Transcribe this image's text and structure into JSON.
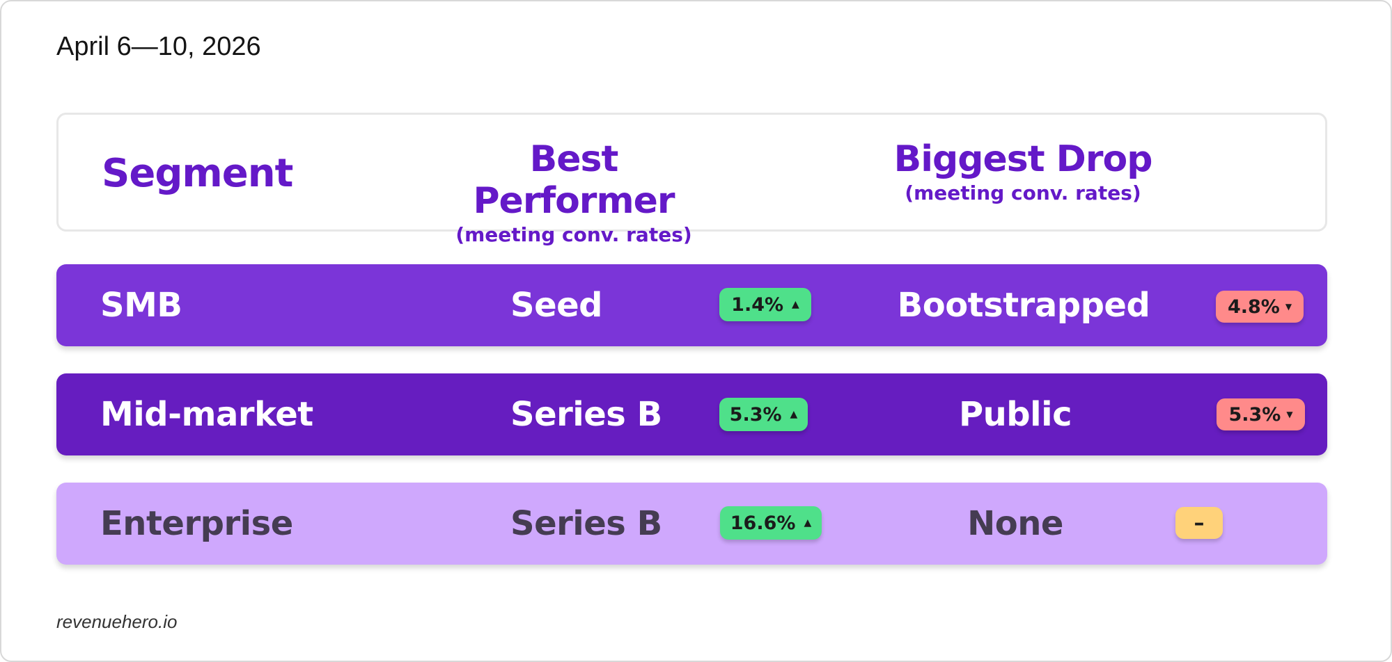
{
  "date_range": "April 6—10, 2026",
  "header": {
    "segment": "Segment",
    "best_title": "Best Performer",
    "best_sub": "(meeting conv. rates)",
    "drop_title": "Biggest Drop",
    "drop_sub": "(meeting conv. rates)"
  },
  "rows": [
    {
      "segment": "SMB",
      "best": "Seed",
      "best_change": "1.4%",
      "best_arrow": "▲",
      "drop": "Bootstrapped",
      "drop_change": "4.8%",
      "drop_arrow": "▼",
      "bg": "#7b35d8",
      "text_color": "#ffffff"
    },
    {
      "segment": "Mid-market",
      "best": "Series B",
      "best_change": "5.3%",
      "best_arrow": "▲",
      "drop": "Public",
      "drop_change": "5.3%",
      "drop_arrow": "▼",
      "bg": "#661dc0",
      "text_color": "#ffffff"
    },
    {
      "segment": "Enterprise",
      "best": "Series B",
      "best_change": "16.6%",
      "best_arrow": "▲",
      "drop": "None",
      "drop_change": "–",
      "drop_arrow": "",
      "bg": "#cfa8fd",
      "text_color": "#453c52"
    }
  ],
  "colors": {
    "accent": "#6419c8",
    "positive": "#4fe08a",
    "negative": "#ff8a8a",
    "neutral": "#ffd27a"
  },
  "footer": "revenuehero.io"
}
